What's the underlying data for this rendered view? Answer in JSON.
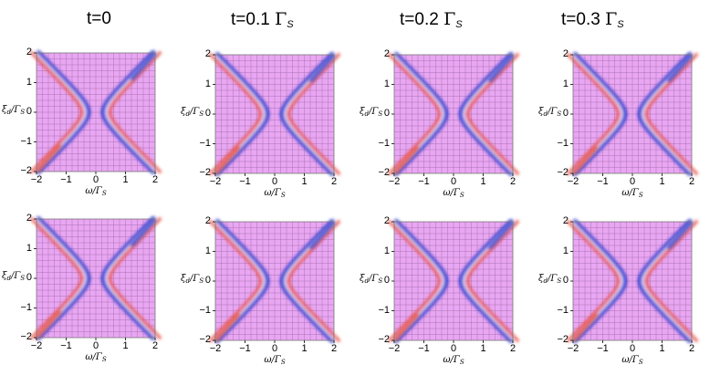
{
  "columns": [
    {
      "title_t": "t=0",
      "gamma": ""
    },
    {
      "title_t": "t=0.1",
      "gamma": "Γ"
    },
    {
      "title_t": "t=0.2",
      "gamma": "Γ"
    },
    {
      "title_t": "t=0.3",
      "gamma": "Γ"
    }
  ],
  "title_sub": "S",
  "colors": {
    "background": "#e9a6f2",
    "hyperbola_blue": "#2f3fd0",
    "hyperbola_red": "#e84a3a",
    "grid": "#4a2a5a"
  },
  "chart_data": [
    {
      "type": "heatmap",
      "row": 1,
      "col": 1,
      "title": "t=0",
      "t_over_gamma": 0,
      "xlabel": "ω/Γ",
      "xlabel_sub": "S",
      "ylabel": "ξ",
      "ylabel_sub_d": "d",
      "ylabel_den": "/Γ",
      "ylabel_sub_s": "S",
      "xlim": [
        -2,
        2
      ],
      "ylim": [
        -2,
        2
      ],
      "xticks": [
        "−2",
        "−1",
        "0",
        "1",
        "2"
      ],
      "yticks": [
        "2",
        "1",
        "0",
        "−1",
        "−2"
      ],
      "center_splits": 0
    },
    {
      "type": "heatmap",
      "row": 1,
      "col": 2,
      "title": "t=0.1 ΓS",
      "t_over_gamma": 0.1,
      "xlabel": "ω/Γ",
      "xlabel_sub": "S",
      "ylabel": "ξ",
      "ylabel_sub_d": "d",
      "ylabel_den": "/Γ",
      "ylabel_sub_s": "S",
      "xlim": [
        -2,
        2
      ],
      "ylim": [
        -2,
        2
      ],
      "xticks": [
        "−2",
        "−1",
        "0",
        "1",
        "2"
      ],
      "yticks": [
        "2",
        "1",
        "0",
        "−1",
        "−2"
      ],
      "center_splits": 0
    },
    {
      "type": "heatmap",
      "row": 1,
      "col": 3,
      "title": "t=0.2 ΓS",
      "t_over_gamma": 0.2,
      "xlabel": "ω/Γ",
      "xlabel_sub": "S",
      "ylabel": "ξ",
      "ylabel_sub_d": "d",
      "ylabel_den": "/Γ",
      "ylabel_sub_s": "S",
      "xlim": [
        -2,
        2
      ],
      "ylim": [
        -2,
        2
      ],
      "xticks": [
        "−2",
        "−1",
        "0",
        "1",
        "2"
      ],
      "yticks": [
        "2",
        "1",
        "0",
        "−1",
        "−2"
      ],
      "center_splits": 1
    },
    {
      "type": "heatmap",
      "row": 1,
      "col": 4,
      "title": "t=0.3 ΓS",
      "t_over_gamma": 0.3,
      "xlabel": "ω/Γ",
      "xlabel_sub": "S",
      "ylabel": "ξ",
      "ylabel_sub_d": "d",
      "ylabel_den": "/Γ",
      "ylabel_sub_s": "S",
      "xlim": [
        -2,
        2
      ],
      "ylim": [
        -2,
        2
      ],
      "xticks": [
        "−2",
        "−1",
        "0",
        "1",
        "2"
      ],
      "yticks": [
        "2",
        "1",
        "0",
        "−1",
        "−2"
      ],
      "center_splits": 2
    },
    {
      "type": "heatmap",
      "row": 2,
      "col": 1,
      "title": "t=0",
      "t_over_gamma": 0,
      "xlabel": "ω/Γ",
      "xlabel_sub": "S",
      "ylabel": "ξ",
      "ylabel_sub_d": "d",
      "ylabel_den": "/Γ",
      "ylabel_sub_s": "S",
      "xlim": [
        -2,
        2
      ],
      "ylim": [
        -2,
        2
      ],
      "xticks": [
        "−2",
        "−1",
        "0",
        "1",
        "2"
      ],
      "yticks": [
        "2",
        "1",
        "0",
        "−1",
        "−2"
      ],
      "center_splits": 0
    },
    {
      "type": "heatmap",
      "row": 2,
      "col": 2,
      "title": "t=0.1 ΓS",
      "t_over_gamma": 0.1,
      "xlabel": "ω/Γ",
      "xlabel_sub": "S",
      "ylabel": "ξ",
      "ylabel_sub_d": "d",
      "ylabel_den": "/Γ",
      "ylabel_sub_s": "S",
      "xlim": [
        -2,
        2
      ],
      "ylim": [
        -2,
        2
      ],
      "xticks": [
        "−2",
        "−1",
        "0",
        "1",
        "2"
      ],
      "yticks": [
        "2",
        "1",
        "0",
        "−1",
        "−2"
      ],
      "center_splits": 0
    },
    {
      "type": "heatmap",
      "row": 2,
      "col": 3,
      "title": "t=0.2 ΓS",
      "t_over_gamma": 0.2,
      "xlabel": "ω/Γ",
      "xlabel_sub": "S",
      "ylabel": "ξ",
      "ylabel_sub_d": "d",
      "ylabel_den": "/Γ",
      "ylabel_sub_s": "S",
      "xlim": [
        -2,
        2
      ],
      "ylim": [
        -2,
        2
      ],
      "xticks": [
        "−2",
        "−1",
        "0",
        "1",
        "2"
      ],
      "yticks": [
        "2",
        "1",
        "0",
        "−1",
        "−2"
      ],
      "center_splits": 1
    },
    {
      "type": "heatmap",
      "row": 2,
      "col": 4,
      "title": "t=0.3 ΓS",
      "t_over_gamma": 0.3,
      "xlabel": "ω/Γ",
      "xlabel_sub": "S",
      "ylabel": "ξ",
      "ylabel_sub_d": "d",
      "ylabel_den": "/Γ",
      "ylabel_sub_s": "S",
      "xlim": [
        -2,
        2
      ],
      "ylim": [
        -2,
        2
      ],
      "xticks": [
        "−2",
        "−1",
        "0",
        "1",
        "2"
      ],
      "yticks": [
        "2",
        "1",
        "0",
        "−1",
        "−2"
      ],
      "center_splits": 1
    }
  ]
}
